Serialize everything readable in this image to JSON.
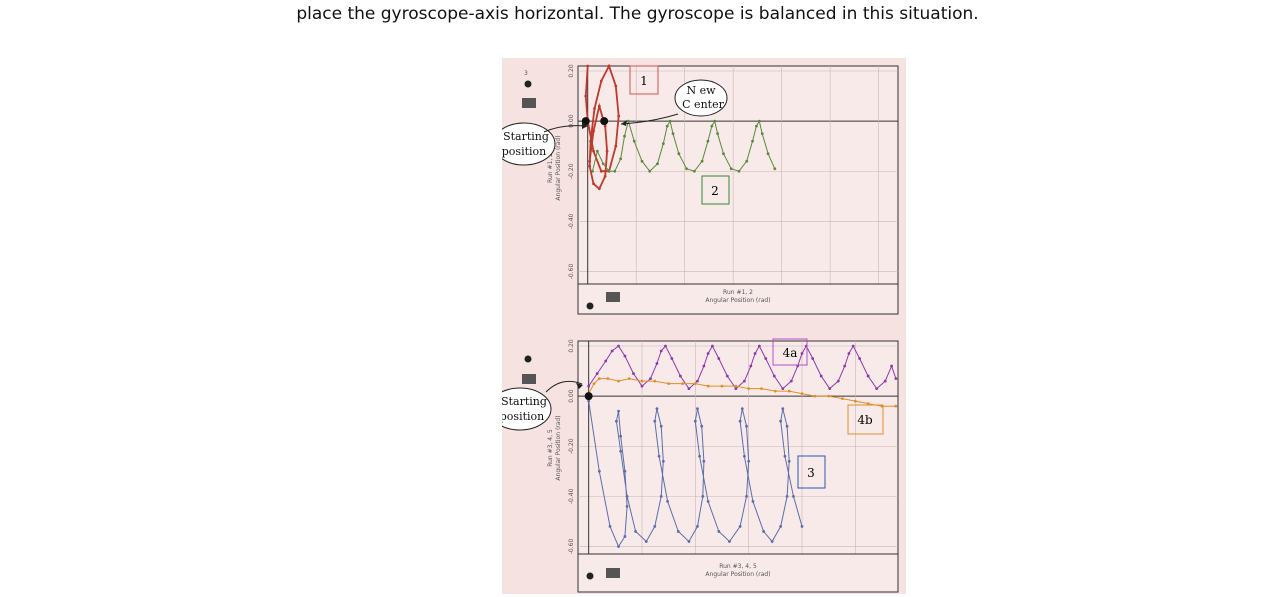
{
  "caption": "place the gyroscope-axis horizontal. The gyroscope is balanced in this situation.",
  "colors": {
    "panel_bg": "#f7e2e2",
    "plot_bg": "#f9eaea",
    "grid": "#c9b4b8",
    "red": "#c0392b",
    "green": "#5a8a3a",
    "purple": "#8e3aa8",
    "orange": "#e0902a",
    "blue": "#5a6ea8"
  },
  "chart_data": [
    {
      "type": "line",
      "xlabel": "Angular Position (rad)",
      "xlabel_run": "Run #1, 2",
      "ylabel": "Angular Position (rad)",
      "ylabel_run": "Run #1, 2",
      "x_ticks": [
        "0",
        "0.5",
        "1.0",
        "1.5",
        "2.0",
        "2.5",
        "3.0"
      ],
      "y_ticks": [
        "0.20",
        "0.00",
        "-0.20",
        "-0.40",
        "-0.60"
      ],
      "xlim": [
        -0.1,
        3.2
      ],
      "ylim": [
        -0.65,
        0.22
      ],
      "annotations": {
        "label_1": "1",
        "label_2": "2",
        "new_center": [
          "N ew",
          "C enter"
        ],
        "starting_position": [
          "Starting",
          "position"
        ]
      },
      "series": [
        {
          "key": "1",
          "color": "red",
          "x": [
            0.0,
            -0.02,
            0.0,
            0.06,
            0.14,
            0.22,
            0.29,
            0.32,
            0.29,
            0.22,
            0.14,
            0.07,
            0.03,
            0.02,
            0.06,
            0.12,
            0.18,
            0.2,
            0.18,
            0.12,
            0.06,
            0.02
          ],
          "y": [
            0.22,
            0.1,
            0.0,
            -0.12,
            -0.2,
            -0.2,
            -0.1,
            0.02,
            0.14,
            0.22,
            0.16,
            0.05,
            -0.08,
            -0.18,
            -0.25,
            -0.27,
            -0.22,
            -0.12,
            -0.02,
            0.06,
            -0.04,
            -0.16
          ]
        },
        {
          "key": "2",
          "color": "green",
          "x": [
            0.05,
            0.1,
            0.16,
            0.22,
            0.28,
            0.34,
            0.38,
            0.42,
            0.48,
            0.56,
            0.64,
            0.72,
            0.78,
            0.82,
            0.85,
            0.88,
            0.94,
            1.02,
            1.1,
            1.18,
            1.24,
            1.28,
            1.31,
            1.34,
            1.4,
            1.48,
            1.56,
            1.64,
            1.7,
            1.74,
            1.77,
            1.8,
            1.86,
            1.93
          ],
          "y": [
            -0.2,
            -0.12,
            -0.17,
            -0.2,
            -0.2,
            -0.15,
            -0.06,
            0.0,
            -0.08,
            -0.16,
            -0.2,
            -0.17,
            -0.09,
            -0.02,
            0.0,
            -0.05,
            -0.13,
            -0.19,
            -0.2,
            -0.16,
            -0.08,
            -0.02,
            0.0,
            -0.05,
            -0.13,
            -0.19,
            -0.2,
            -0.16,
            -0.08,
            -0.02,
            0.0,
            -0.05,
            -0.13,
            -0.19
          ]
        }
      ],
      "markers": [
        {
          "x": -0.02,
          "y": 0.0
        },
        {
          "x": 0.17,
          "y": 0.0
        }
      ]
    },
    {
      "type": "line",
      "xlabel": "Angular Position (rad)",
      "xlabel_run": "Run #3, 4, 5",
      "ylabel": "Angular Position (rad)",
      "ylabel_run": "Run #3, 4, 5",
      "x_ticks": [
        "0",
        "0.5",
        "1.0",
        "1.5",
        "2.0",
        "2.5"
      ],
      "y_ticks": [
        "0.20",
        "0.00",
        "-0.20",
        "-0.40",
        "-0.60"
      ],
      "xlim": [
        -0.1,
        2.9
      ],
      "ylim": [
        -0.63,
        0.22
      ],
      "annotations": {
        "label_3": "3",
        "label_4a": "4a",
        "label_4b": "4b",
        "starting_position": [
          "Starting",
          "position"
        ]
      },
      "series": [
        {
          "key": "4a",
          "color": "purple",
          "x": [
            0.0,
            0.08,
            0.16,
            0.22,
            0.28,
            0.34,
            0.42,
            0.5,
            0.58,
            0.64,
            0.68,
            0.72,
            0.78,
            0.86,
            0.94,
            1.02,
            1.08,
            1.12,
            1.16,
            1.22,
            1.3,
            1.38,
            1.46,
            1.52,
            1.56,
            1.6,
            1.66,
            1.74,
            1.82,
            1.9,
            1.96,
            2.0,
            2.04,
            2.1,
            2.18,
            2.26,
            2.34,
            2.4,
            2.44,
            2.48,
            2.54,
            2.62,
            2.7,
            2.78,
            2.84,
            2.88
          ],
          "y": [
            0.04,
            0.09,
            0.14,
            0.18,
            0.2,
            0.16,
            0.09,
            0.04,
            0.07,
            0.13,
            0.18,
            0.2,
            0.15,
            0.08,
            0.03,
            0.06,
            0.12,
            0.17,
            0.2,
            0.15,
            0.08,
            0.03,
            0.06,
            0.12,
            0.17,
            0.2,
            0.15,
            0.08,
            0.03,
            0.06,
            0.12,
            0.17,
            0.2,
            0.15,
            0.08,
            0.03,
            0.06,
            0.12,
            0.17,
            0.2,
            0.15,
            0.08,
            0.03,
            0.06,
            0.12,
            0.07
          ]
        },
        {
          "key": "4b",
          "color": "orange",
          "x": [
            0.0,
            0.05,
            0.1,
            0.18,
            0.28,
            0.38,
            0.5,
            0.62,
            0.75,
            0.88,
            1.0,
            1.12,
            1.25,
            1.38,
            1.5,
            1.62,
            1.75,
            1.88,
            2.0,
            2.12,
            2.25,
            2.38,
            2.5,
            2.62,
            2.75,
            2.88
          ],
          "y": [
            0.01,
            0.05,
            0.07,
            0.07,
            0.06,
            0.07,
            0.06,
            0.06,
            0.05,
            0.05,
            0.05,
            0.04,
            0.04,
            0.04,
            0.03,
            0.03,
            0.02,
            0.02,
            0.01,
            0.0,
            0.0,
            -0.01,
            -0.02,
            -0.03,
            -0.04,
            -0.04
          ]
        },
        {
          "key": "3",
          "color": "blue",
          "x": [
            0.0,
            0.1,
            0.2,
            0.28,
            0.34,
            0.36,
            0.34,
            0.3,
            0.28,
            0.26,
            0.3,
            0.36,
            0.44,
            0.54,
            0.62,
            0.68,
            0.7,
            0.68,
            0.64,
            0.62,
            0.66,
            0.74,
            0.84,
            0.94,
            1.02,
            1.07,
            1.08,
            1.06,
            1.02,
            1.0,
            1.04,
            1.12,
            1.22,
            1.32,
            1.42,
            1.48,
            1.5,
            1.48,
            1.44,
            1.42,
            1.46,
            1.54,
            1.64,
            1.72,
            1.8,
            1.86,
            1.88,
            1.86,
            1.82,
            1.8,
            1.84,
            1.92,
            2.0
          ],
          "y": [
            -0.02,
            -0.3,
            -0.52,
            -0.6,
            -0.56,
            -0.44,
            -0.3,
            -0.16,
            -0.06,
            -0.1,
            -0.22,
            -0.4,
            -0.54,
            -0.58,
            -0.52,
            -0.4,
            -0.26,
            -0.12,
            -0.05,
            -0.1,
            -0.24,
            -0.42,
            -0.54,
            -0.58,
            -0.52,
            -0.4,
            -0.26,
            -0.12,
            -0.05,
            -0.1,
            -0.24,
            -0.42,
            -0.54,
            -0.58,
            -0.52,
            -0.4,
            -0.26,
            -0.12,
            -0.05,
            -0.1,
            -0.24,
            -0.42,
            -0.54,
            -0.58,
            -0.52,
            -0.4,
            -0.26,
            -0.12,
            -0.05,
            -0.1,
            -0.24,
            -0.4,
            -0.52
          ]
        }
      ],
      "markers": [
        {
          "x": 0.0,
          "y": 0.0
        }
      ]
    }
  ]
}
